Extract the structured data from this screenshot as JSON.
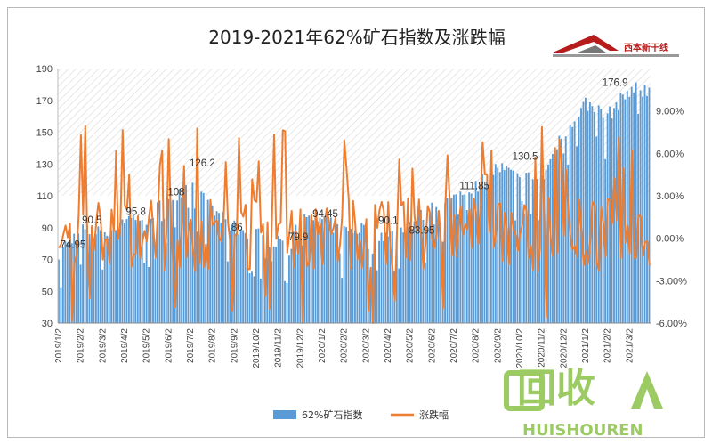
{
  "chart_data": {
    "type": "bar+line",
    "title": "2019-2021年62%矿石指数及涨跌幅",
    "categories": [
      "2019/1/2",
      "2019/2/2",
      "2019/3/2",
      "2019/4/2",
      "2019/5/2",
      "2019/6/2",
      "2019/7/2",
      "2019/8/2",
      "2019/9/2",
      "2019/10/2",
      "2019/11/2",
      "2019/12/2",
      "2020/1/2",
      "2020/2/2",
      "2020/3/2",
      "2020/4/2",
      "2020/5/2",
      "2020/6/2",
      "2020/7/2",
      "2020/8/2",
      "2020/9/2",
      "2020/10/2",
      "2020/11/2",
      "2020/12/2",
      "2021/1/2",
      "2021/2/2",
      "2021/3/2"
    ],
    "left_axis": {
      "min": 30,
      "max": 190,
      "ticks": [
        30,
        50,
        70,
        90,
        110,
        130,
        150,
        170,
        190
      ]
    },
    "right_axis": {
      "min": -6,
      "max": 12,
      "ticks": [
        "-6.00%",
        "-3.00%",
        "0.00%",
        "3.00%",
        "6.00%",
        "9.00%"
      ],
      "tick_values": [
        -6,
        -3,
        0,
        3,
        6,
        9
      ]
    },
    "series": [
      {
        "name": "62%矿石指数",
        "kind": "bar",
        "axis": "left",
        "color": "#5b9bd5",
        "monthly_levels": [
          74.95,
          88,
          86,
          95.8,
          96,
          108,
          118,
          100,
          90,
          86,
          80,
          94,
          94,
          88,
          90.1,
          84,
          92,
          102,
          108,
          116,
          128,
          122,
          120,
          150,
          168,
          160,
          176.9
        ]
      },
      {
        "name": "涨跌幅",
        "kind": "line",
        "axis": "right",
        "color": "#ed7d31",
        "unit": "%"
      }
    ],
    "data_labels": [
      {
        "month": 0.1,
        "value": 74.95,
        "text": "74.95"
      },
      {
        "month": 1.1,
        "value": 90.5,
        "text": "90.5"
      },
      {
        "month": 3.1,
        "value": 95.8,
        "text": "95.8"
      },
      {
        "month": 5.0,
        "value": 108,
        "text": "108"
      },
      {
        "month": 6.0,
        "value": 126.2,
        "text": "126.2"
      },
      {
        "month": 7.9,
        "value": 86,
        "text": "86"
      },
      {
        "month": 10.5,
        "value": 79.9,
        "text": "79.9"
      },
      {
        "month": 11.6,
        "value": 94.45,
        "text": "94.45"
      },
      {
        "month": 14.6,
        "value": 90.1,
        "text": "90.1"
      },
      {
        "month": 16.0,
        "value": 83.95,
        "text": "83.95"
      },
      {
        "month": 18.3,
        "value": 111.85,
        "text": "111.85"
      },
      {
        "month": 20.7,
        "value": 130.5,
        "text": "130.5"
      },
      {
        "month": 24.8,
        "value": 176.9,
        "text": "176.9"
      }
    ],
    "legend_position": "bottom",
    "grid": false,
    "upper_band_hatched": true
  },
  "logo": {
    "text": "西本新干线"
  },
  "watermark": {
    "main": "回收",
    "sub": "HUISHOUREN"
  },
  "colors": {
    "bar": "#5b9bd5",
    "line": "#ed7d31",
    "watermark": "#8bc34a"
  }
}
